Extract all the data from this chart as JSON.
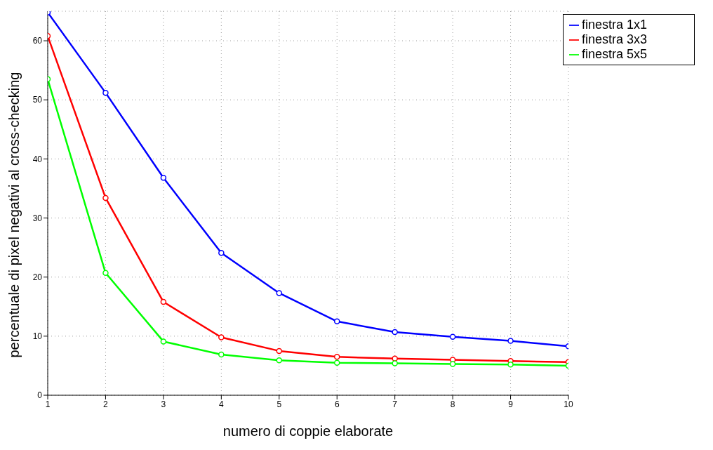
{
  "chart_data": {
    "type": "line",
    "xlabel": "numero di coppie elaborate",
    "ylabel": "percentuale di pixel negativi al cross-checking",
    "x": [
      1,
      2,
      3,
      4,
      5,
      6,
      7,
      8,
      9,
      10
    ],
    "series": [
      {
        "name": "finestra 1x1",
        "color": "#0000ff",
        "values": [
          64.8,
          51.2,
          36.8,
          24.1,
          17.3,
          12.5,
          10.7,
          9.9,
          9.2,
          8.3
        ]
      },
      {
        "name": "finestra 3x3",
        "color": "#ff0000",
        "values": [
          60.8,
          33.4,
          15.8,
          9.8,
          7.5,
          6.5,
          6.2,
          6.0,
          5.8,
          5.6
        ]
      },
      {
        "name": "finestra 5x5",
        "color": "#00ff00",
        "values": [
          53.5,
          20.7,
          9.1,
          6.9,
          5.9,
          5.5,
          5.4,
          5.3,
          5.2,
          5.0
        ]
      }
    ],
    "xlim": [
      1,
      10
    ],
    "xticks": [
      1,
      2,
      3,
      4,
      5,
      6,
      7,
      8,
      9,
      10
    ],
    "ylim": [
      0,
      65
    ],
    "yticks": [
      0,
      10,
      20,
      30,
      40,
      50,
      60
    ],
    "grid": true,
    "legend": "top right",
    "marker": "circle",
    "line_style": "solid"
  }
}
